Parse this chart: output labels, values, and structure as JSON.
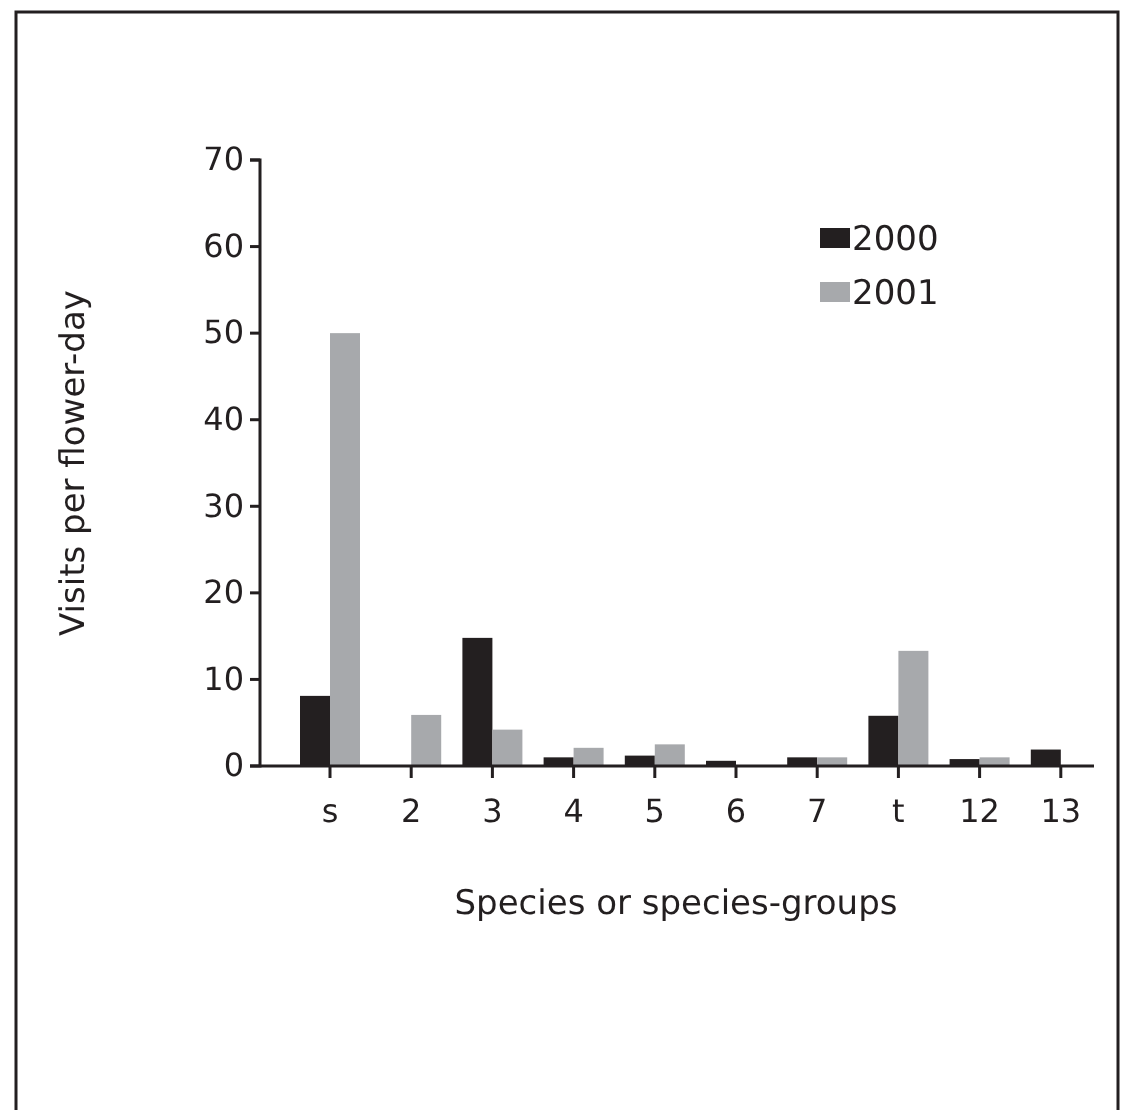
{
  "chart_data": {
    "type": "bar",
    "xlabel": "Species or species-groups",
    "ylabel": "Visits per flower-day",
    "categories": [
      "s",
      "2",
      "3",
      "4",
      "5",
      "6",
      "7",
      "t",
      "12",
      "13"
    ],
    "series": [
      {
        "name": "2000",
        "color": "#231f20",
        "values": [
          8.1,
          null,
          14.8,
          1.0,
          1.2,
          0.6,
          1.0,
          5.8,
          0.8,
          1.9
        ]
      },
      {
        "name": "2001",
        "color": "#a7a9ac",
        "values": [
          50,
          5.9,
          4.2,
          2.1,
          2.5,
          null,
          1.0,
          13.3,
          1.0,
          null
        ]
      }
    ],
    "ylim": [
      0,
      70
    ],
    "yticks": [
      0,
      10,
      20,
      30,
      40,
      50,
      60,
      70
    ],
    "grid": false,
    "legend": "top right"
  }
}
